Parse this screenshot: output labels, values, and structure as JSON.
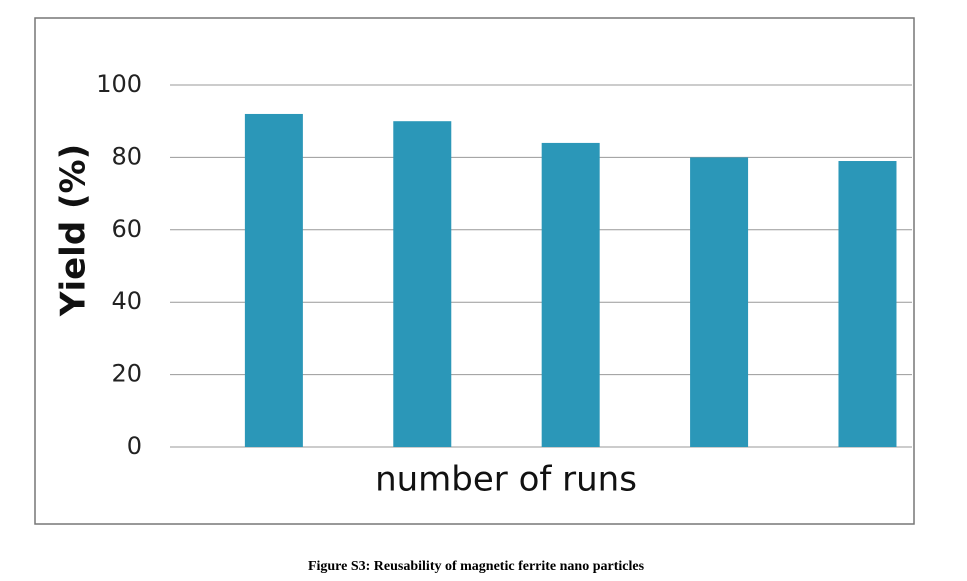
{
  "chart_data": {
    "type": "bar",
    "x_label": "number of runs",
    "y_label": "Yield (%)",
    "caption": "Figure S3: Reusability of magnetic ferrite nano particles",
    "categories": [
      null,
      null,
      null,
      null,
      null
    ],
    "values": [
      92,
      90,
      84,
      80,
      79
    ],
    "color": "#2b97b8",
    "ylim": [
      0,
      100
    ],
    "yticks": [
      0,
      20,
      40,
      60,
      80,
      100
    ],
    "grid": true
  }
}
